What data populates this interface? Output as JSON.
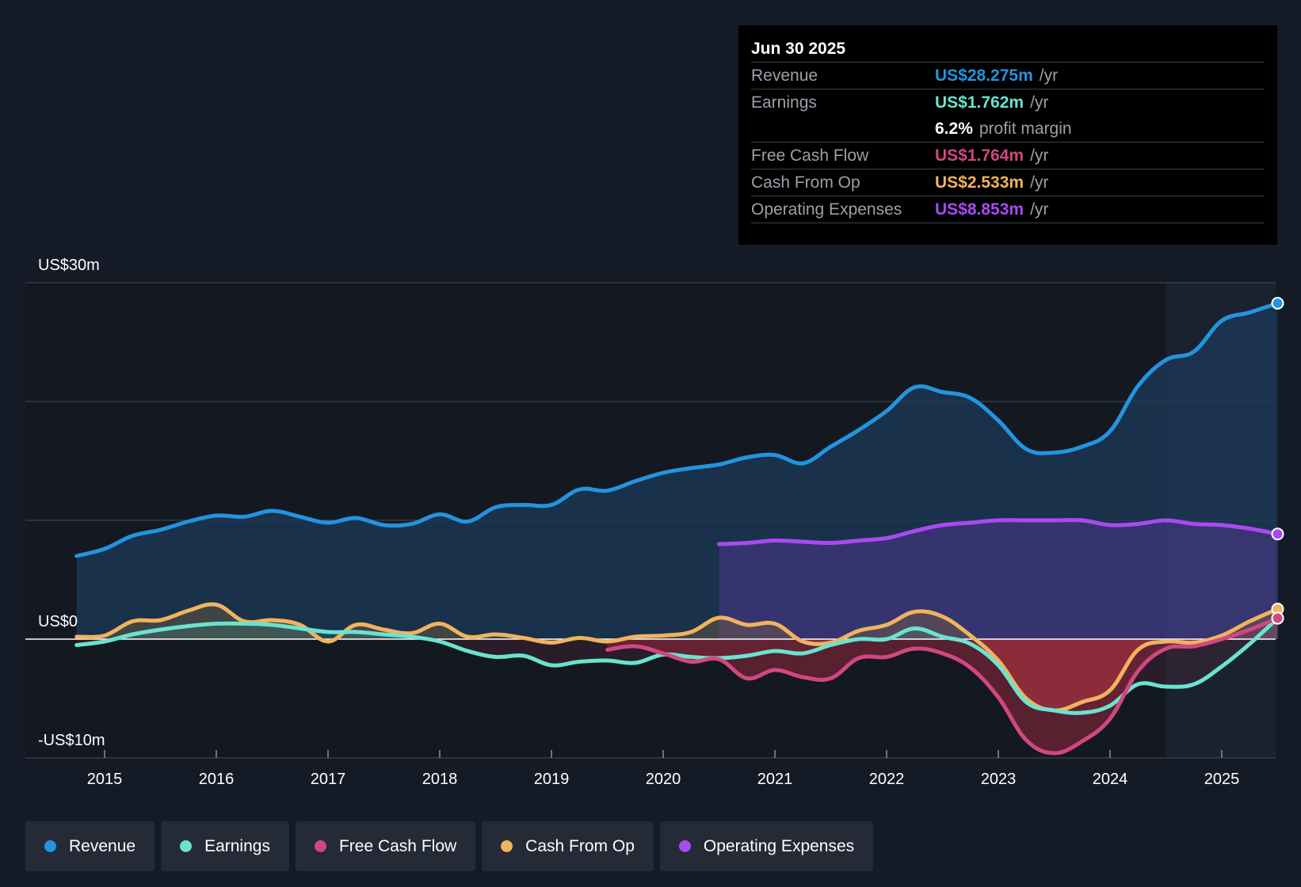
{
  "colors": {
    "revenue": "#2394df",
    "earnings": "#6ae3d0",
    "fcf": "#d0487f",
    "cfo": "#f0b35e",
    "opex": "#a94af0"
  },
  "tooltip": {
    "date": "Jun 30 2025",
    "rows": [
      {
        "label": "Revenue",
        "value": "US$28.275m",
        "unit": "/yr",
        "color": "#2394df"
      },
      {
        "label": "Earnings",
        "value": "US$1.762m",
        "unit": "/yr",
        "color": "#6ae3d0"
      },
      {
        "label": "",
        "value": "6.2%",
        "unit": "profit margin",
        "color": "#ffffff"
      },
      {
        "label": "Free Cash Flow",
        "value": "US$1.764m",
        "unit": "/yr",
        "color": "#d0487f"
      },
      {
        "label": "Cash From Op",
        "value": "US$2.533m",
        "unit": "/yr",
        "color": "#f0b35e"
      },
      {
        "label": "Operating Expenses",
        "value": "US$8.853m",
        "unit": "/yr",
        "color": "#a94af0"
      }
    ]
  },
  "legend": [
    {
      "label": "Revenue",
      "color": "#2394df"
    },
    {
      "label": "Earnings",
      "color": "#6ae3d0"
    },
    {
      "label": "Free Cash Flow",
      "color": "#d0487f"
    },
    {
      "label": "Cash From Op",
      "color": "#f0b35e"
    },
    {
      "label": "Operating Expenses",
      "color": "#a94af0"
    }
  ],
  "chart_data": {
    "type": "area",
    "y_axis": {
      "top_label": "US$30m",
      "zero_label": "US$0",
      "bottom_label": "-US$10m",
      "ylim": [
        -10,
        30
      ],
      "gridlines": [
        -10,
        0,
        10,
        20,
        30
      ]
    },
    "x_ticks": [
      "2015",
      "2016",
      "2017",
      "2018",
      "2019",
      "2020",
      "2021",
      "2022",
      "2023",
      "2024",
      "2025"
    ],
    "xlim": [
      2014.3,
      2025.5
    ],
    "highlight_start": 2024.5,
    "series": [
      {
        "name": "Revenue",
        "key": "revenue",
        "points": [
          [
            2014.75,
            7.0
          ],
          [
            2015.0,
            7.6
          ],
          [
            2015.25,
            8.7
          ],
          [
            2015.5,
            9.2
          ],
          [
            2015.75,
            9.9
          ],
          [
            2016.0,
            10.4
          ],
          [
            2016.25,
            10.3
          ],
          [
            2016.5,
            10.8
          ],
          [
            2016.75,
            10.3
          ],
          [
            2017.0,
            9.8
          ],
          [
            2017.25,
            10.2
          ],
          [
            2017.5,
            9.6
          ],
          [
            2017.75,
            9.7
          ],
          [
            2018.0,
            10.5
          ],
          [
            2018.25,
            9.9
          ],
          [
            2018.5,
            11.1
          ],
          [
            2018.75,
            11.3
          ],
          [
            2019.0,
            11.3
          ],
          [
            2019.25,
            12.6
          ],
          [
            2019.5,
            12.5
          ],
          [
            2019.75,
            13.3
          ],
          [
            2020.0,
            14.0
          ],
          [
            2020.25,
            14.4
          ],
          [
            2020.5,
            14.7
          ],
          [
            2020.75,
            15.3
          ],
          [
            2021.0,
            15.5
          ],
          [
            2021.25,
            14.8
          ],
          [
            2021.5,
            16.2
          ],
          [
            2021.75,
            17.6
          ],
          [
            2022.0,
            19.2
          ],
          [
            2022.25,
            21.2
          ],
          [
            2022.5,
            20.8
          ],
          [
            2022.75,
            20.3
          ],
          [
            2023.0,
            18.4
          ],
          [
            2023.25,
            16.0
          ],
          [
            2023.5,
            15.7
          ],
          [
            2023.75,
            16.2
          ],
          [
            2024.0,
            17.5
          ],
          [
            2024.25,
            21.3
          ],
          [
            2024.5,
            23.5
          ],
          [
            2024.75,
            24.2
          ],
          [
            2025.0,
            26.8
          ],
          [
            2025.25,
            27.5
          ],
          [
            2025.5,
            28.275
          ]
        ]
      },
      {
        "name": "Operating Expenses",
        "key": "opex",
        "points": [
          [
            2020.5,
            8.0
          ],
          [
            2020.75,
            8.1
          ],
          [
            2021.0,
            8.3
          ],
          [
            2021.25,
            8.2
          ],
          [
            2021.5,
            8.1
          ],
          [
            2021.75,
            8.3
          ],
          [
            2022.0,
            8.5
          ],
          [
            2022.25,
            9.1
          ],
          [
            2022.5,
            9.6
          ],
          [
            2022.75,
            9.8
          ],
          [
            2023.0,
            10.0
          ],
          [
            2023.25,
            10.0
          ],
          [
            2023.5,
            10.0
          ],
          [
            2023.75,
            10.0
          ],
          [
            2024.0,
            9.6
          ],
          [
            2024.25,
            9.7
          ],
          [
            2024.5,
            10.0
          ],
          [
            2024.75,
            9.7
          ],
          [
            2025.0,
            9.6
          ],
          [
            2025.25,
            9.3
          ],
          [
            2025.5,
            8.853
          ]
        ]
      },
      {
        "name": "Cash From Op",
        "key": "cfo",
        "points": [
          [
            2014.75,
            0.2
          ],
          [
            2015.0,
            0.3
          ],
          [
            2015.25,
            1.5
          ],
          [
            2015.5,
            1.6
          ],
          [
            2015.75,
            2.4
          ],
          [
            2016.0,
            2.9
          ],
          [
            2016.25,
            1.5
          ],
          [
            2016.5,
            1.6
          ],
          [
            2016.75,
            1.2
          ],
          [
            2017.0,
            -0.2
          ],
          [
            2017.25,
            1.2
          ],
          [
            2017.5,
            0.8
          ],
          [
            2017.75,
            0.5
          ],
          [
            2018.0,
            1.3
          ],
          [
            2018.25,
            0.2
          ],
          [
            2018.5,
            0.4
          ],
          [
            2018.75,
            0.1
          ],
          [
            2019.0,
            -0.3
          ],
          [
            2019.25,
            0.1
          ],
          [
            2019.5,
            -0.2
          ],
          [
            2019.75,
            0.2
          ],
          [
            2020.0,
            0.3
          ],
          [
            2020.25,
            0.6
          ],
          [
            2020.5,
            1.8
          ],
          [
            2020.75,
            1.2
          ],
          [
            2021.0,
            1.3
          ],
          [
            2021.25,
            -0.2
          ],
          [
            2021.5,
            -0.3
          ],
          [
            2021.75,
            0.7
          ],
          [
            2022.0,
            1.2
          ],
          [
            2022.25,
            2.3
          ],
          [
            2022.5,
            1.9
          ],
          [
            2022.75,
            0.3
          ],
          [
            2023.0,
            -1.8
          ],
          [
            2023.25,
            -5.0
          ],
          [
            2023.5,
            -6.0
          ],
          [
            2023.75,
            -5.3
          ],
          [
            2024.0,
            -4.3
          ],
          [
            2024.25,
            -0.9
          ],
          [
            2024.5,
            -0.2
          ],
          [
            2024.75,
            -0.3
          ],
          [
            2025.0,
            0.3
          ],
          [
            2025.25,
            1.5
          ],
          [
            2025.5,
            2.533
          ]
        ]
      },
      {
        "name": "Earnings",
        "key": "earnings",
        "points": [
          [
            2014.75,
            -0.5
          ],
          [
            2015.0,
            -0.2
          ],
          [
            2015.25,
            0.4
          ],
          [
            2015.5,
            0.8
          ],
          [
            2015.75,
            1.1
          ],
          [
            2016.0,
            1.3
          ],
          [
            2016.25,
            1.3
          ],
          [
            2016.5,
            1.2
          ],
          [
            2016.75,
            0.9
          ],
          [
            2017.0,
            0.6
          ],
          [
            2017.25,
            0.6
          ],
          [
            2017.5,
            0.4
          ],
          [
            2017.75,
            0.2
          ],
          [
            2018.0,
            -0.2
          ],
          [
            2018.25,
            -1.0
          ],
          [
            2018.5,
            -1.5
          ],
          [
            2018.75,
            -1.4
          ],
          [
            2019.0,
            -2.2
          ],
          [
            2019.25,
            -1.9
          ],
          [
            2019.5,
            -1.8
          ],
          [
            2019.75,
            -2.0
          ],
          [
            2020.0,
            -1.3
          ],
          [
            2020.25,
            -1.5
          ],
          [
            2020.5,
            -1.6
          ],
          [
            2020.75,
            -1.4
          ],
          [
            2021.0,
            -1.0
          ],
          [
            2021.25,
            -1.2
          ],
          [
            2021.5,
            -0.5
          ],
          [
            2021.75,
            0.0
          ],
          [
            2022.0,
            0.0
          ],
          [
            2022.25,
            0.9
          ],
          [
            2022.5,
            0.2
          ],
          [
            2022.75,
            -0.4
          ],
          [
            2023.0,
            -2.2
          ],
          [
            2023.25,
            -5.3
          ],
          [
            2023.5,
            -6.0
          ],
          [
            2023.75,
            -6.2
          ],
          [
            2024.0,
            -5.6
          ],
          [
            2024.25,
            -3.8
          ],
          [
            2024.5,
            -4.0
          ],
          [
            2024.75,
            -3.8
          ],
          [
            2025.0,
            -2.3
          ],
          [
            2025.25,
            -0.4
          ],
          [
            2025.5,
            1.762
          ]
        ]
      },
      {
        "name": "Free Cash Flow",
        "key": "fcf",
        "points": [
          [
            2019.5,
            -0.9
          ],
          [
            2019.75,
            -0.6
          ],
          [
            2020.0,
            -1.2
          ],
          [
            2020.25,
            -1.9
          ],
          [
            2020.5,
            -1.7
          ],
          [
            2020.75,
            -3.3
          ],
          [
            2021.0,
            -2.6
          ],
          [
            2021.25,
            -3.2
          ],
          [
            2021.5,
            -3.3
          ],
          [
            2021.75,
            -1.6
          ],
          [
            2022.0,
            -1.5
          ],
          [
            2022.25,
            -0.8
          ],
          [
            2022.5,
            -1.2
          ],
          [
            2022.75,
            -2.4
          ],
          [
            2023.0,
            -4.9
          ],
          [
            2023.25,
            -8.5
          ],
          [
            2023.5,
            -9.6
          ],
          [
            2023.75,
            -8.6
          ],
          [
            2024.0,
            -6.7
          ],
          [
            2024.25,
            -2.7
          ],
          [
            2024.5,
            -0.8
          ],
          [
            2024.75,
            -0.6
          ],
          [
            2025.0,
            0.0
          ],
          [
            2025.25,
            0.8
          ],
          [
            2025.5,
            1.764
          ]
        ]
      }
    ]
  }
}
